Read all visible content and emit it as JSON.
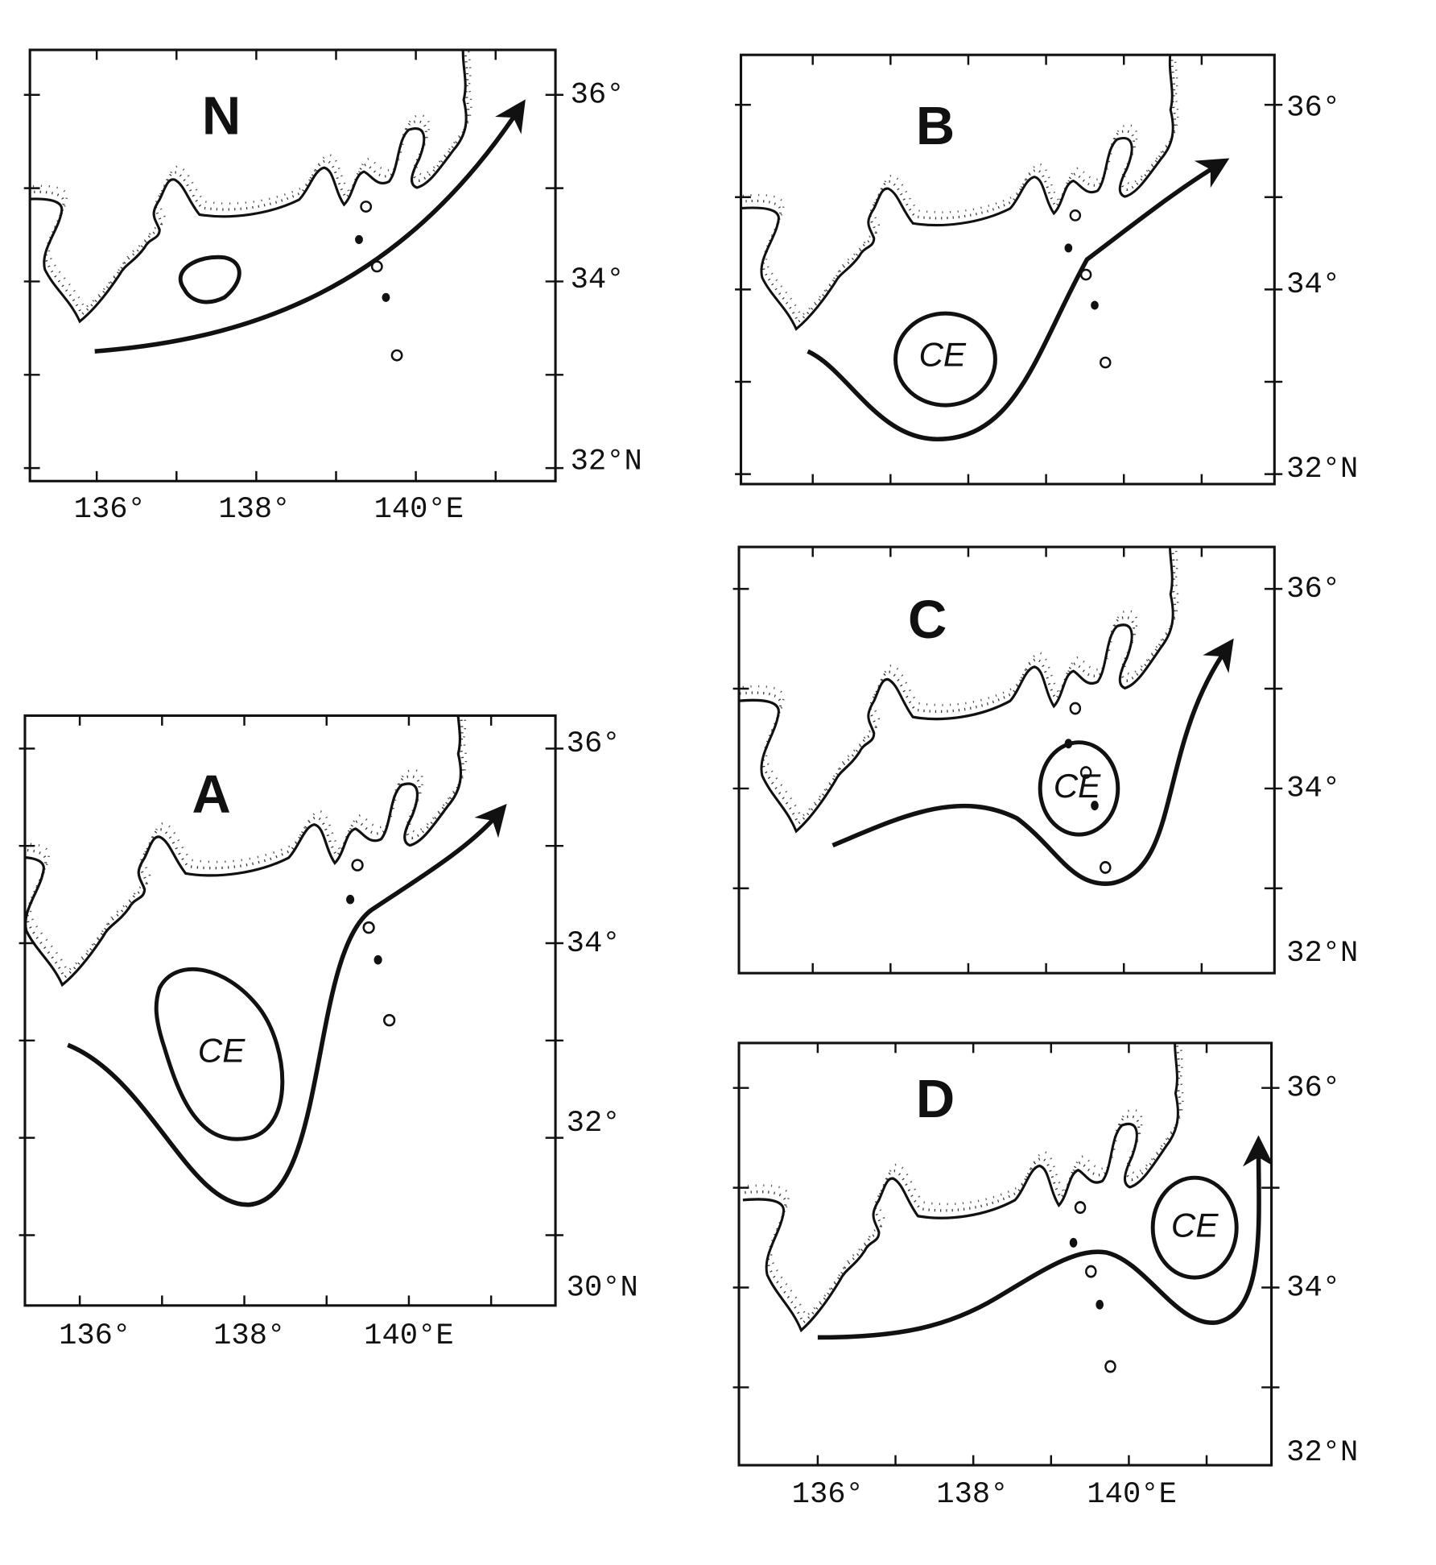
{
  "panels": [
    {
      "label": "N",
      "latitude_labels": [
        "36°",
        "34°",
        "32°N"
      ],
      "longitude_labels": [
        "136°",
        "138°",
        "140°E"
      ]
    },
    {
      "label": "A",
      "eddy_label": "CE",
      "latitude_labels": [
        "36°",
        "34°",
        "32°",
        "30°N"
      ],
      "longitude_labels": [
        "136°",
        "138°",
        "140°E"
      ]
    },
    {
      "label": "B",
      "eddy_label": "CE",
      "latitude_labels": [
        "36°",
        "34°",
        "32°N"
      ]
    },
    {
      "label": "C",
      "eddy_label": "CE",
      "latitude_labels": [
        "36°",
        "34°",
        "32°N"
      ]
    },
    {
      "label": "D",
      "eddy_label": "CE",
      "latitude_labels": [
        "36°",
        "34°",
        "32°N"
      ],
      "longitude_labels": [
        "136°",
        "138°",
        "140°E"
      ]
    }
  ]
}
